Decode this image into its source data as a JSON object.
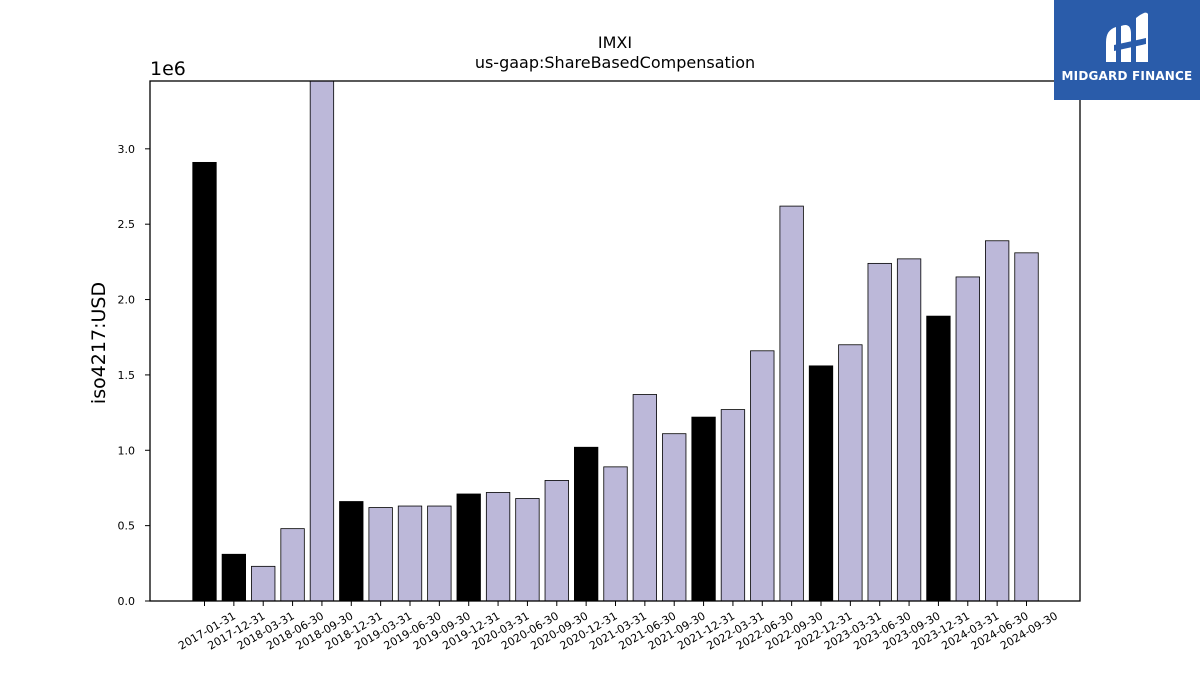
{
  "chart_data": {
    "type": "bar",
    "title": "IMXI",
    "subtitle": "us-gaap:ShareBasedCompensation",
    "xlabel": "",
    "ylabel": "iso4217:USD",
    "y_multiplier_label": "1e6",
    "ylim": [
      0,
      3.45
    ],
    "yticks": [
      "0.0",
      "0.5",
      "1.0",
      "1.5",
      "2.0",
      "2.5",
      "3.0"
    ],
    "grid": false,
    "colors": {
      "annual": "#000000",
      "quarterly": "#bcb8d9",
      "edge": "#000000"
    },
    "categories": [
      "2017-01-31",
      "2017-12-31",
      "2018-03-31",
      "2018-06-30",
      "2018-09-30",
      "2018-12-31",
      "2019-03-31",
      "2019-06-30",
      "2019-09-30",
      "2019-12-31",
      "2020-03-31",
      "2020-06-30",
      "2020-09-30",
      "2020-12-31",
      "2021-03-31",
      "2021-06-30",
      "2021-09-30",
      "2021-12-31",
      "2022-03-31",
      "2022-06-30",
      "2022-09-30",
      "2022-12-31",
      "2023-03-31",
      "2023-06-30",
      "2023-09-30",
      "2023-12-31",
      "2024-03-31",
      "2024-06-30",
      "2024-09-30"
    ],
    "values": [
      2.91,
      0.31,
      0.23,
      0.48,
      3.45,
      0.66,
      0.62,
      0.63,
      0.63,
      0.71,
      0.72,
      0.68,
      0.8,
      1.02,
      0.89,
      1.37,
      1.11,
      1.22,
      1.27,
      1.66,
      2.62,
      1.56,
      1.7,
      2.24,
      2.27,
      1.89,
      2.15,
      2.39,
      2.31
    ],
    "bar_kind": [
      "annual",
      "annual",
      "quarterly",
      "quarterly",
      "quarterly",
      "annual",
      "quarterly",
      "quarterly",
      "quarterly",
      "annual",
      "quarterly",
      "quarterly",
      "quarterly",
      "annual",
      "quarterly",
      "quarterly",
      "quarterly",
      "annual",
      "quarterly",
      "quarterly",
      "quarterly",
      "annual",
      "quarterly",
      "quarterly",
      "quarterly",
      "annual",
      "quarterly",
      "quarterly",
      "quarterly"
    ]
  },
  "logo": {
    "text": "MIDGARD FINANCE",
    "icon": "midgard-logo-icon",
    "background": "#2a5caa"
  }
}
